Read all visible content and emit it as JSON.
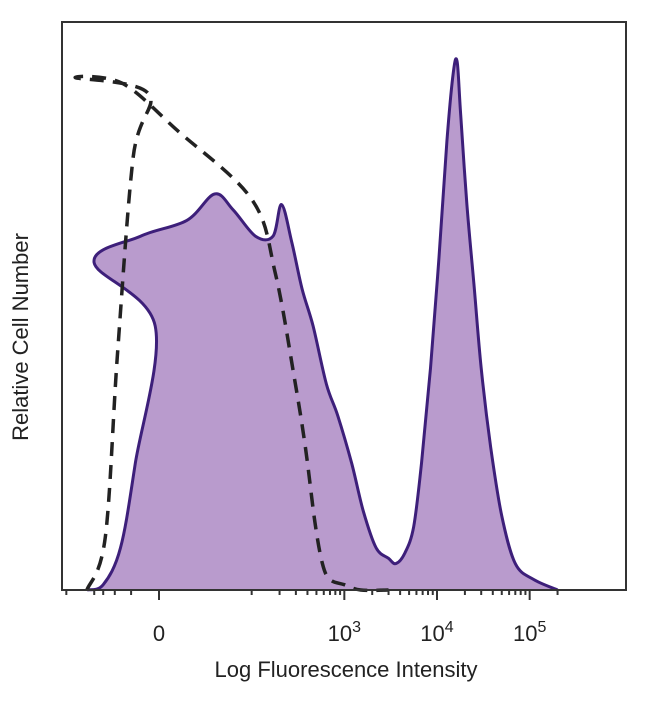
{
  "chart_data": {
    "type": "area",
    "title": "",
    "xlabel": "Log Fluorescence Intensity",
    "ylabel": "Relative Cell Number",
    "x_scale": "biexponential",
    "xlim": [
      -600,
      300000
    ],
    "ylim": [
      0,
      100
    ],
    "grid": false,
    "legend": "none",
    "x_ticks": [
      {
        "value": 0,
        "base": "0",
        "exp": ""
      },
      {
        "value": 1000,
        "base": "10",
        "exp": "3"
      },
      {
        "value": 10000,
        "base": "10",
        "exp": "4"
      },
      {
        "value": 100000,
        "base": "10",
        "exp": "5"
      }
    ],
    "colors": {
      "stained_fill": "#b99bcd",
      "stained_line": "#3d1f7a",
      "control_line": "#222222",
      "frame": "#333333"
    },
    "series": [
      {
        "style": "filled-solid",
        "points": [
          [
            -600,
            0
          ],
          [
            -400,
            1
          ],
          [
            -260,
            8
          ],
          [
            -180,
            24
          ],
          [
            -110,
            50
          ],
          [
            -70,
            62
          ],
          [
            -20,
            67
          ],
          [
            30,
            70
          ],
          [
            60,
            75
          ],
          [
            80,
            72
          ],
          [
            110,
            67
          ],
          [
            170,
            67
          ],
          [
            210,
            73
          ],
          [
            270,
            66
          ],
          [
            350,
            57
          ],
          [
            460,
            50
          ],
          [
            640,
            39
          ],
          [
            850,
            33
          ],
          [
            1200,
            24
          ],
          [
            1600,
            15
          ],
          [
            2200,
            8
          ],
          [
            3000,
            6
          ],
          [
            3600,
            5
          ],
          [
            4500,
            7
          ],
          [
            5600,
            12
          ],
          [
            6800,
            24
          ],
          [
            8500,
            42
          ],
          [
            10500,
            63
          ],
          [
            12800,
            85
          ],
          [
            15000,
            98
          ],
          [
            16500,
            100
          ],
          [
            18000,
            90
          ],
          [
            21000,
            73
          ],
          [
            25000,
            58
          ],
          [
            30000,
            42
          ],
          [
            38000,
            27
          ],
          [
            50000,
            14
          ],
          [
            70000,
            5
          ],
          [
            110000,
            2
          ],
          [
            200000,
            0
          ]
        ]
      },
      {
        "style": "dashed",
        "points": [
          [
            -600,
            0
          ],
          [
            -380,
            10
          ],
          [
            -280,
            45
          ],
          [
            -190,
            82
          ],
          [
            -130,
            94
          ],
          [
            -90,
            97
          ],
          [
            -40,
            96
          ],
          [
            20,
            87
          ],
          [
            100,
            74
          ],
          [
            180,
            60
          ],
          [
            290,
            40
          ],
          [
            380,
            27
          ],
          [
            480,
            13
          ],
          [
            580,
            5
          ],
          [
            700,
            2
          ],
          [
            1000,
            1
          ],
          [
            1500,
            0
          ],
          [
            3000,
            0
          ]
        ]
      }
    ]
  }
}
